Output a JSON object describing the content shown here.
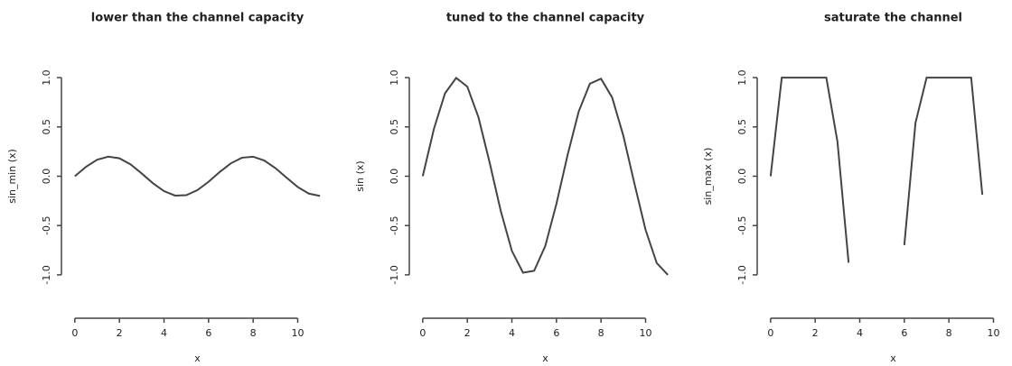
{
  "chart_data": [
    {
      "type": "line",
      "title": "lower than the channel  capacity",
      "xlabel": "x",
      "ylabel": "sin_min (x)",
      "x": [
        0,
        0.5,
        1,
        1.5,
        2,
        2.5,
        3,
        3.5,
        4,
        4.5,
        5,
        5.5,
        6,
        6.5,
        7,
        7.5,
        8,
        8.5,
        9,
        9.5,
        10,
        10.5,
        11
      ],
      "series": [
        {
          "name": "sin_min",
          "color": "#444444",
          "values": [
            0,
            0.096,
            0.168,
            0.199,
            0.182,
            0.12,
            0.028,
            -0.07,
            -0.151,
            -0.196,
            -0.192,
            -0.141,
            -0.056,
            0.043,
            0.131,
            0.188,
            0.198,
            0.16,
            0.082,
            -0.015,
            -0.109,
            -0.176,
            -0.2
          ]
        }
      ],
      "xlim": [
        -0.44,
        11.44
      ],
      "xticks": [
        0,
        2,
        4,
        6,
        8,
        10
      ],
      "ylim": [
        -1.33,
        1.33
      ],
      "yticks": [
        {
          "value": -1,
          "label": "-1.0"
        },
        {
          "value": -0.5,
          "label": "-0.5"
        },
        {
          "value": 0,
          "label": "0.0"
        },
        {
          "value": 0.5,
          "label": "0.5"
        },
        {
          "value": 1,
          "label": "1.0"
        }
      ]
    },
    {
      "type": "line",
      "title": "tuned to the channel capacity",
      "xlabel": "x",
      "ylabel": "sin (x)",
      "x": [
        0,
        0.5,
        1,
        1.5,
        2,
        2.5,
        3,
        3.5,
        4,
        4.5,
        5,
        5.5,
        6,
        6.5,
        7,
        7.5,
        8,
        8.5,
        9,
        9.5,
        10,
        10.5,
        11
      ],
      "series": [
        {
          "name": "sin",
          "color": "#444444",
          "values": [
            0,
            0.479,
            0.841,
            0.997,
            0.909,
            0.598,
            0.141,
            -0.351,
            -0.757,
            -0.978,
            -0.959,
            -0.706,
            -0.279,
            0.215,
            0.657,
            0.938,
            0.989,
            0.798,
            0.412,
            -0.075,
            -0.544,
            -0.88,
            -1
          ]
        }
      ],
      "xlim": [
        -0.44,
        11.44
      ],
      "xticks": [
        0,
        2,
        4,
        6,
        8,
        10
      ],
      "ylim": [
        -1.33,
        1.33
      ],
      "yticks": [
        {
          "value": -1,
          "label": "-1.0"
        },
        {
          "value": -0.5,
          "label": "-0.5"
        },
        {
          "value": 0,
          "label": "0.0"
        },
        {
          "value": 0.5,
          "label": "0.5"
        },
        {
          "value": 1,
          "label": "1.0"
        }
      ]
    },
    {
      "type": "line",
      "title": "saturate the channel",
      "xlabel": "x",
      "ylabel": "sin_max (x)",
      "x": [
        0,
        0.5,
        1,
        1.5,
        2,
        2.5,
        3,
        3.5,
        4,
        4.5,
        5,
        5.5,
        6,
        6.5,
        7,
        7.5,
        8,
        8.5,
        9,
        9.5,
        10,
        10.5,
        11
      ],
      "series": [
        {
          "name": "sin_max",
          "color": "#444444",
          "values": [
            0,
            1,
            1,
            1,
            1,
            1,
            0.35,
            -0.877,
            null,
            null,
            null,
            null,
            -0.698,
            0.54,
            1,
            1,
            1,
            1,
            1,
            -0.187,
            null,
            null,
            null
          ]
        }
      ],
      "xlim": [
        -0.44,
        11.44
      ],
      "xticks": [
        0,
        2,
        4,
        6,
        8,
        10
      ],
      "ylim": [
        -1.33,
        1.33
      ],
      "yticks": [
        {
          "value": -1,
          "label": "-1.0"
        },
        {
          "value": -0.5,
          "label": "-0.5"
        },
        {
          "value": 0,
          "label": "0.0"
        },
        {
          "value": 0.5,
          "label": "0.5"
        },
        {
          "value": 1,
          "label": "1.0"
        }
      ]
    }
  ]
}
